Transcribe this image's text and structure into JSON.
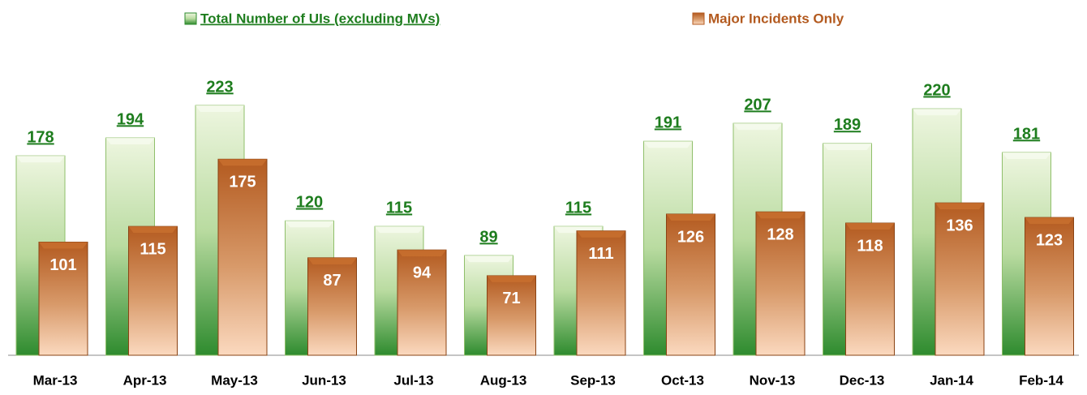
{
  "chart_data": {
    "type": "bar",
    "categories": [
      "Mar-13",
      "Apr-13",
      "May-13",
      "Jun-13",
      "Jul-13",
      "Aug-13",
      "Sep-13",
      "Oct-13",
      "Nov-13",
      "Dec-13",
      "Jan-14",
      "Feb-14"
    ],
    "series": [
      {
        "name": "Total Number of UIs (excluding MVs)",
        "color": "#2e8b2e",
        "values": [
          178,
          194,
          223,
          120,
          115,
          89,
          115,
          191,
          207,
          189,
          220,
          181
        ]
      },
      {
        "name": "Major Incidents Only",
        "color": "#b35a1f",
        "values": [
          101,
          115,
          175,
          87,
          94,
          71,
          111,
          126,
          128,
          118,
          136,
          123
        ]
      }
    ]
  }
}
